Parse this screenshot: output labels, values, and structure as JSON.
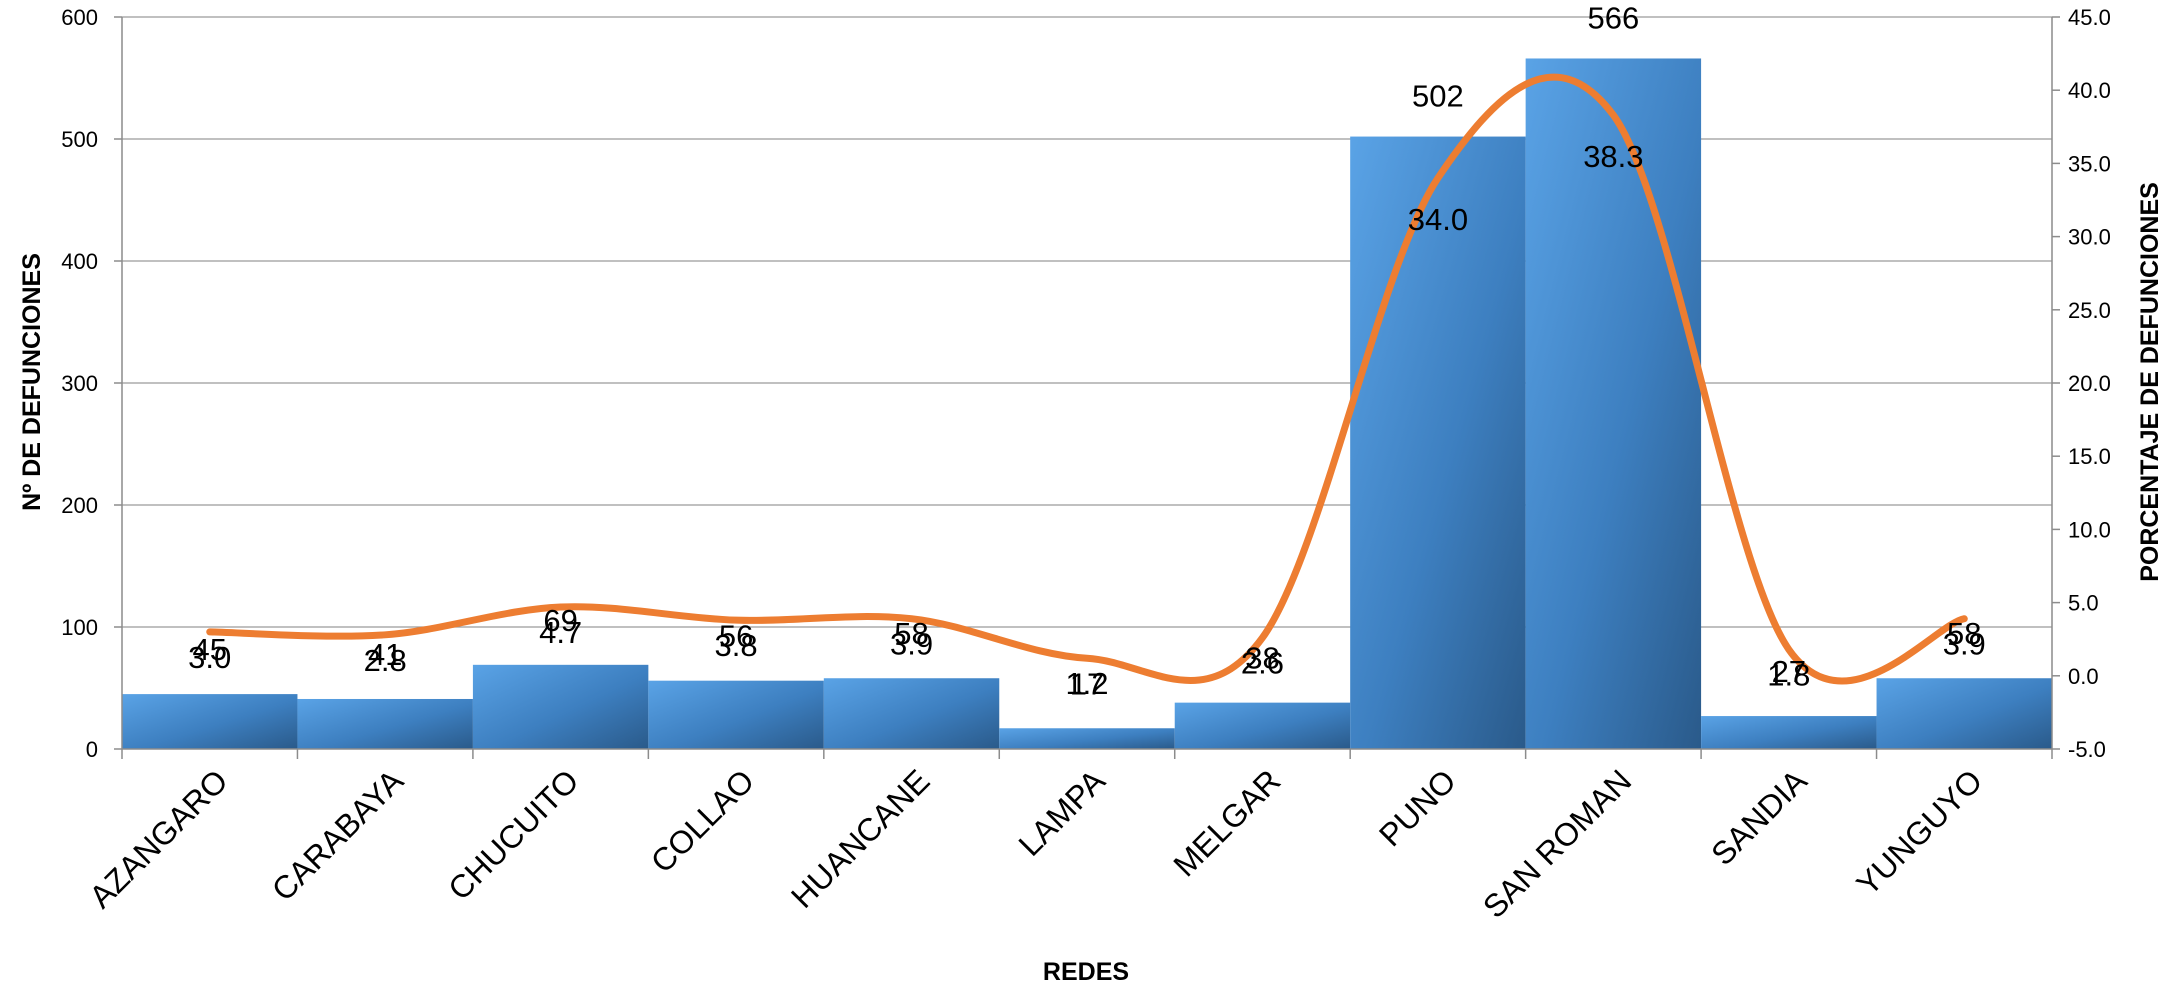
{
  "chart_data": {
    "type": "bar",
    "categories": [
      "AZANGARO",
      "CARABAYA",
      "CHUCUITO",
      "COLLAO",
      "HUANCANE",
      "LAMPA",
      "MELGAR",
      "PUNO",
      "SAN ROMAN",
      "SANDIA",
      "YUNGUYO"
    ],
    "series": [
      {
        "type": "bar",
        "axis": "left",
        "values": [
          45,
          41,
          69,
          56,
          58,
          17,
          38,
          502,
          566,
          27,
          58
        ],
        "labels": [
          "45",
          "41",
          "69",
          "56",
          "58",
          "17",
          "38",
          "502",
          "566",
          "27",
          "58"
        ],
        "color": "#4a8fd4"
      },
      {
        "type": "line",
        "axis": "right",
        "values": [
          3.0,
          2.8,
          4.7,
          3.8,
          3.9,
          1.2,
          2.6,
          34.0,
          38.3,
          1.8,
          3.9
        ],
        "labels": [
          "3.0",
          "2.8",
          "4.7",
          "3.8",
          "3.9",
          "1.2",
          "2.6",
          "34.0",
          "38.3",
          "1.8",
          "3.9"
        ],
        "color": "#ed7d31"
      }
    ],
    "xlabel": "REDES",
    "ylabel": "Nº DE DEFUNCIONES",
    "y2label": "PORCENTAJE DE DEFUNCIONES",
    "ylim": [
      0,
      600
    ],
    "y2lim": [
      -5.0,
      45.0
    ],
    "yticks": [
      "0",
      "100",
      "200",
      "300",
      "400",
      "500",
      "600"
    ],
    "y2ticks": [
      "-5.0",
      "0.0",
      "5.0",
      "10.0",
      "15.0",
      "20.0",
      "25.0",
      "30.0",
      "35.0",
      "40.0",
      "45.0"
    ],
    "grid": true,
    "legend": "none"
  }
}
